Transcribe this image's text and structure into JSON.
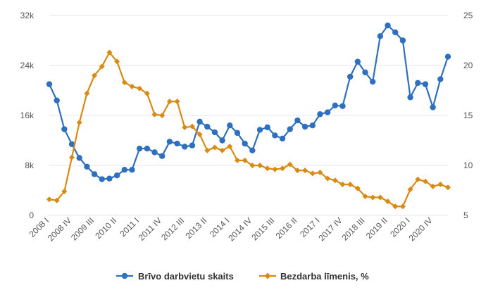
{
  "chart_data": {
    "type": "line",
    "title": "",
    "xlabel": "",
    "ylabel": "",
    "grid": true,
    "legend_position": "bottom",
    "x_tick_labels": [
      "2008 I",
      "2008 IV",
      "2009 III",
      "2010 II",
      "2011 I",
      "2011 IV",
      "2012 III",
      "2013 II",
      "2014 I",
      "2014 IV",
      "2015 III",
      "2016 II",
      "2017 I",
      "2017 IV",
      "2018 III",
      "2019 II",
      "2020 I",
      "2020 IV"
    ],
    "y_left": {
      "min": 0,
      "max": 32000,
      "ticks": [
        0,
        8000,
        16000,
        24000,
        32000
      ],
      "tick_labels": [
        "0",
        "8k",
        "16k",
        "24k",
        "32k"
      ]
    },
    "y_right": {
      "min": 5,
      "max": 25,
      "ticks": [
        5,
        10,
        15,
        20,
        25
      ],
      "tick_labels": [
        "5",
        "10",
        "15",
        "20",
        "25"
      ]
    },
    "series": [
      {
        "name": "Brīvo darbvietu skaits",
        "axis": "left",
        "color": "#2e6fbf",
        "marker": "circle",
        "values": [
          21000,
          18400,
          13800,
          11400,
          9200,
          7800,
          6600,
          5800,
          5900,
          6400,
          7300,
          7300,
          10700,
          10700,
          10100,
          9500,
          11800,
          11500,
          11000,
          11200,
          15000,
          14200,
          13300,
          12000,
          14400,
          13200,
          11500,
          10400,
          13700,
          14100,
          12800,
          12300,
          13800,
          15200,
          14200,
          14400,
          16200,
          16500,
          17600,
          17500,
          22200,
          24600,
          22900,
          21400,
          28700,
          30400,
          29300,
          28000,
          18900,
          21200,
          21000,
          17300,
          21800,
          25400
        ]
      },
      {
        "name": "Bezdarba līmenis, %",
        "axis": "right",
        "color": "#d98a12",
        "marker": "diamond",
        "values": [
          6.6,
          6.5,
          7.4,
          10.8,
          14.3,
          17.2,
          19.0,
          19.9,
          21.3,
          20.4,
          18.3,
          17.9,
          17.7,
          17.2,
          15.1,
          15.0,
          16.4,
          16.4,
          13.8,
          13.9,
          13.1,
          11.5,
          11.8,
          11.5,
          11.9,
          10.5,
          10.5,
          10.0,
          10.0,
          9.7,
          9.6,
          9.7,
          10.1,
          9.5,
          9.5,
          9.2,
          9.3,
          8.7,
          8.5,
          8.1,
          8.1,
          7.7,
          6.9,
          6.8,
          6.8,
          6.4,
          5.9,
          5.9,
          7.6,
          8.6,
          8.4,
          7.9,
          8.1,
          7.8
        ]
      }
    ]
  }
}
